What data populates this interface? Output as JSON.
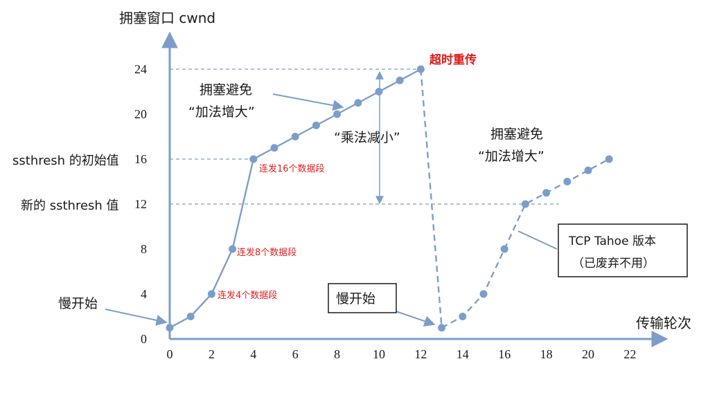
{
  "axes": {
    "y_title": "拥塞窗口 cwnd",
    "x_title": "传输轮次",
    "y_ticks": [
      "0",
      "4",
      "8",
      "12",
      "16",
      "20",
      "24"
    ],
    "x_ticks": [
      "0",
      "2",
      "4",
      "6",
      "8",
      "10",
      "12",
      "14",
      "16",
      "18",
      "20",
      "22"
    ]
  },
  "side_labels": {
    "ssthresh_initial": "ssthresh 的初始值",
    "ssthresh_new": "新的 ssthresh 值"
  },
  "annotations": {
    "timeout": "超时重传",
    "ca1_line1": "拥塞避免",
    "ca1_line2": "“加法增大”",
    "md": "“乘法减小”",
    "ca2_line1": "拥塞避免",
    "ca2_line2": "“加法增大”",
    "slow_start_1": "慢开始",
    "slow_start_2": "慢开始",
    "burst_4": "连发4个数据段",
    "burst_8": "连发8个数据段",
    "burst_16": "连发16个数据段",
    "tahoe_line1": "TCP Tahoe 版本",
    "tahoe_line2": "（已废弃不用）"
  },
  "colors": {
    "series": "#7b9ec9",
    "axis": "#7b9ec9",
    "guide": "#7b9ec9",
    "arrow": "#7b9ec9",
    "note_red": "#e02020"
  },
  "chart_data": {
    "type": "line",
    "xlim": [
      0,
      22
    ],
    "ylim": [
      0,
      24
    ],
    "y_ticks": [
      0,
      4,
      8,
      12,
      16,
      20,
      24
    ],
    "x_ticks": [
      0,
      2,
      4,
      6,
      8,
      10,
      12,
      14,
      16,
      18,
      20,
      22
    ],
    "ssthresh_initial": 16,
    "ssthresh_new": 12,
    "series": [
      {
        "style": "solid",
        "x": [
          0,
          1,
          2,
          3,
          4,
          5,
          6,
          7,
          8,
          9,
          10,
          11,
          12
        ],
        "y": [
          1,
          2,
          4,
          8,
          16,
          17,
          18,
          19,
          20,
          21,
          22,
          23,
          24
        ]
      },
      {
        "style": "dashed",
        "x": [
          12,
          13,
          14,
          15,
          16,
          17,
          18,
          19,
          20,
          21
        ],
        "y": [
          24,
          1,
          2,
          4,
          8,
          12,
          13,
          14,
          15,
          16
        ]
      }
    ]
  }
}
